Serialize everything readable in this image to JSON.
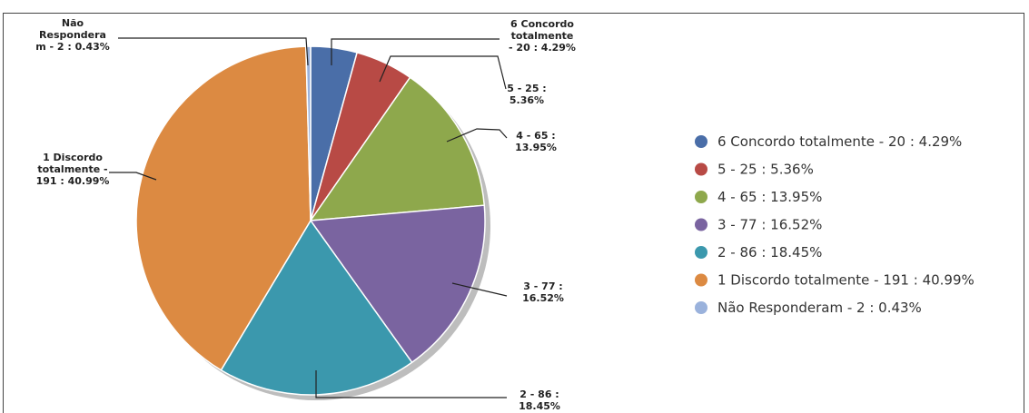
{
  "chart_data": {
    "type": "pie",
    "title": "",
    "legend_position": "right",
    "slices": [
      {
        "category": "6 Concordo totalmente",
        "count": 20,
        "percent": 4.29,
        "color": "#4a6ea8",
        "legend": "6 Concordo totalmente  - 20 : 4.29%",
        "callout": [
          "6 Concordo",
          "totalmente",
          "- 20 : 4.29%"
        ]
      },
      {
        "category": "5",
        "count": 25,
        "percent": 5.36,
        "color": "#b84a45",
        "legend": "5 - 25 : 5.36%",
        "callout": [
          "5 - 25 :",
          "5.36%"
        ]
      },
      {
        "category": "4",
        "count": 65,
        "percent": 13.95,
        "color": "#8ea84c",
        "legend": "4 - 65 : 13.95%",
        "callout": [
          "4 - 65 :",
          "13.95%"
        ]
      },
      {
        "category": "3",
        "count": 77,
        "percent": 16.52,
        "color": "#7a64a0",
        "legend": "3 - 77 : 16.52%",
        "callout": [
          "3 - 77 :",
          "16.52%"
        ]
      },
      {
        "category": "2",
        "count": 86,
        "percent": 18.45,
        "color": "#3b98ad",
        "legend": "2 - 86 : 18.45%",
        "callout": [
          "2 - 86 :",
          "18.45%"
        ]
      },
      {
        "category": "1 Discordo totalmente",
        "count": 191,
        "percent": 40.99,
        "color": "#dc8a42",
        "legend": "1 Discordo totalmente - 191 : 40.99%",
        "callout": [
          "1 Discordo",
          "totalmente -",
          "191 : 40.99%"
        ]
      },
      {
        "category": "Não Responderam",
        "count": 2,
        "percent": 0.43,
        "color": "#9ab2dc",
        "legend": "Não Responderam - 2 : 0.43%",
        "callout": [
          "Não",
          "Respondera",
          "m - 2 : 0.43%"
        ]
      }
    ]
  }
}
